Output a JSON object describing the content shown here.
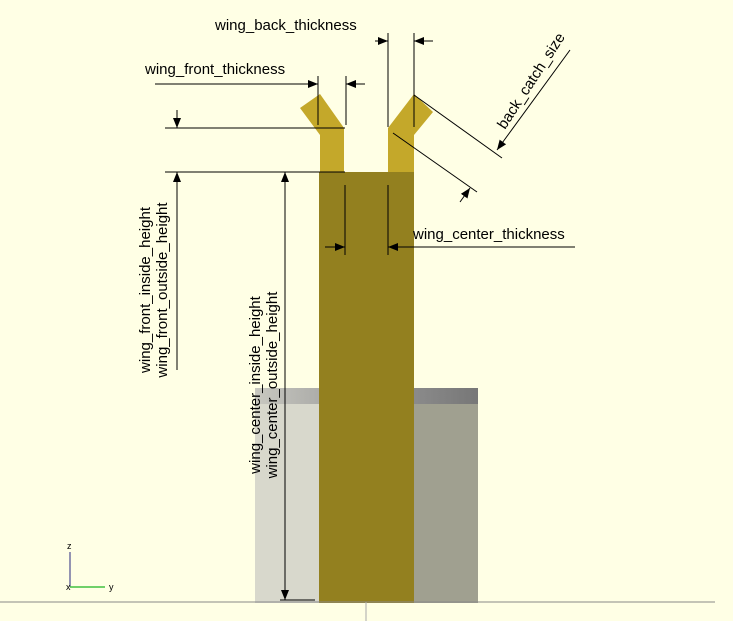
{
  "viewport": {
    "background": "#ffffe5",
    "colors": {
      "center_column": "#93801f",
      "wing": "#c4a82a",
      "base_light": "#d8d8cc",
      "base_dark": "#a0a090"
    },
    "labels": {
      "wing_back_thickness": "wing_back_thickness",
      "wing_front_thickness": "wing_front_thickness",
      "back_catch_size": "back_catch_size",
      "wing_center_thickness": "wing_center_thickness",
      "wing_front_inside_height": "wing_front_inside_height",
      "wing_front_outside_height": "wing_front_outside_height",
      "wing_center_inside_height": "wing_center_inside_height",
      "wing_center_outside_height": "wing_center_outside_height"
    },
    "axes": {
      "z": "z",
      "x": "x",
      "y": "y"
    }
  }
}
